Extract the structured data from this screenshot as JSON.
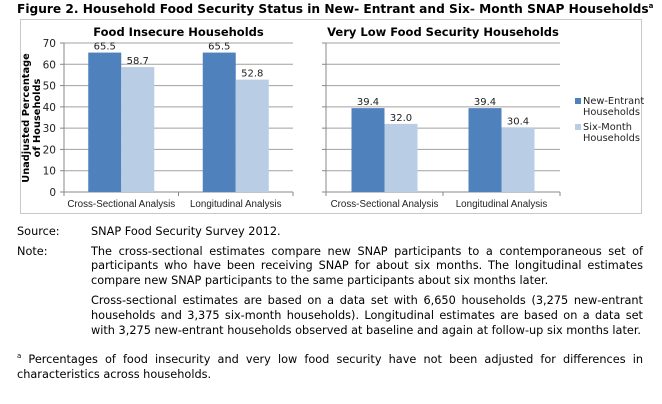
{
  "figure_title": "Figure 2. Household Food Security Status in New- Entrant and Six- Month SNAP Households",
  "figure_title_sup": "a",
  "chart_data": [
    {
      "type": "bar",
      "title": "Food Insecure Households",
      "ylabel": "Unadjusted Percentage of Households",
      "ylim": [
        0,
        70
      ],
      "yticks": [
        0,
        10,
        20,
        30,
        40,
        50,
        60,
        70
      ],
      "grid": true,
      "categories": [
        "Cross-Sectional Analysis",
        "Longitudinal Analysis"
      ],
      "series": [
        {
          "name": "New-Entrant Households",
          "values": [
            65.5,
            65.5
          ],
          "color": "#4f81bd"
        },
        {
          "name": "Six-Month Households",
          "values": [
            58.7,
            52.8
          ],
          "color": "#b9cde5"
        }
      ],
      "data_labels": [
        [
          "65.5",
          "65.5"
        ],
        [
          "58.7",
          "52.8"
        ]
      ]
    },
    {
      "type": "bar",
      "title": "Very Low Food Security Households",
      "ylim": [
        0,
        70
      ],
      "grid": true,
      "categories": [
        "Cross-Sectional Analysis",
        "Longitudinal Analysis"
      ],
      "series": [
        {
          "name": "New-Entrant Households",
          "values": [
            39.4,
            39.4
          ],
          "color": "#4f81bd"
        },
        {
          "name": "Six-Month Households",
          "values": [
            32.0,
            30.4
          ],
          "color": "#b9cde5"
        }
      ],
      "data_labels": [
        [
          "39.4",
          "39.4"
        ],
        [
          "32.0",
          "30.4"
        ]
      ],
      "legend": "right"
    }
  ],
  "legend": [
    {
      "line1": "New-Entrant",
      "line2": "Households",
      "color": "#4f81bd"
    },
    {
      "line1": "Six-Month",
      "line2": "Households",
      "color": "#b9cde5"
    }
  ],
  "source_label": "Source:",
  "source_text": "SNAP Food Security Survey 2012.",
  "note_label": "Note:",
  "note_p1": "The cross-sectional estimates compare new SNAP participants to a contemporaneous set of participants who have been receiving SNAP for about six months. The longitudinal estimates compare new SNAP participants to the same participants about six months later.",
  "note_p2": "Cross-sectional estimates are based on a data set with 6,650 households (3,275 new-entrant households and 3,375 six-month households). Longitudinal estimates are based on a data set with 3,275 new-entrant households observed at baseline and again at follow-up six months later.",
  "footnote_mark": "a",
  "footnote_text": "Percentages of food insecurity and very low food security have not been adjusted for differences in characteristics across households."
}
